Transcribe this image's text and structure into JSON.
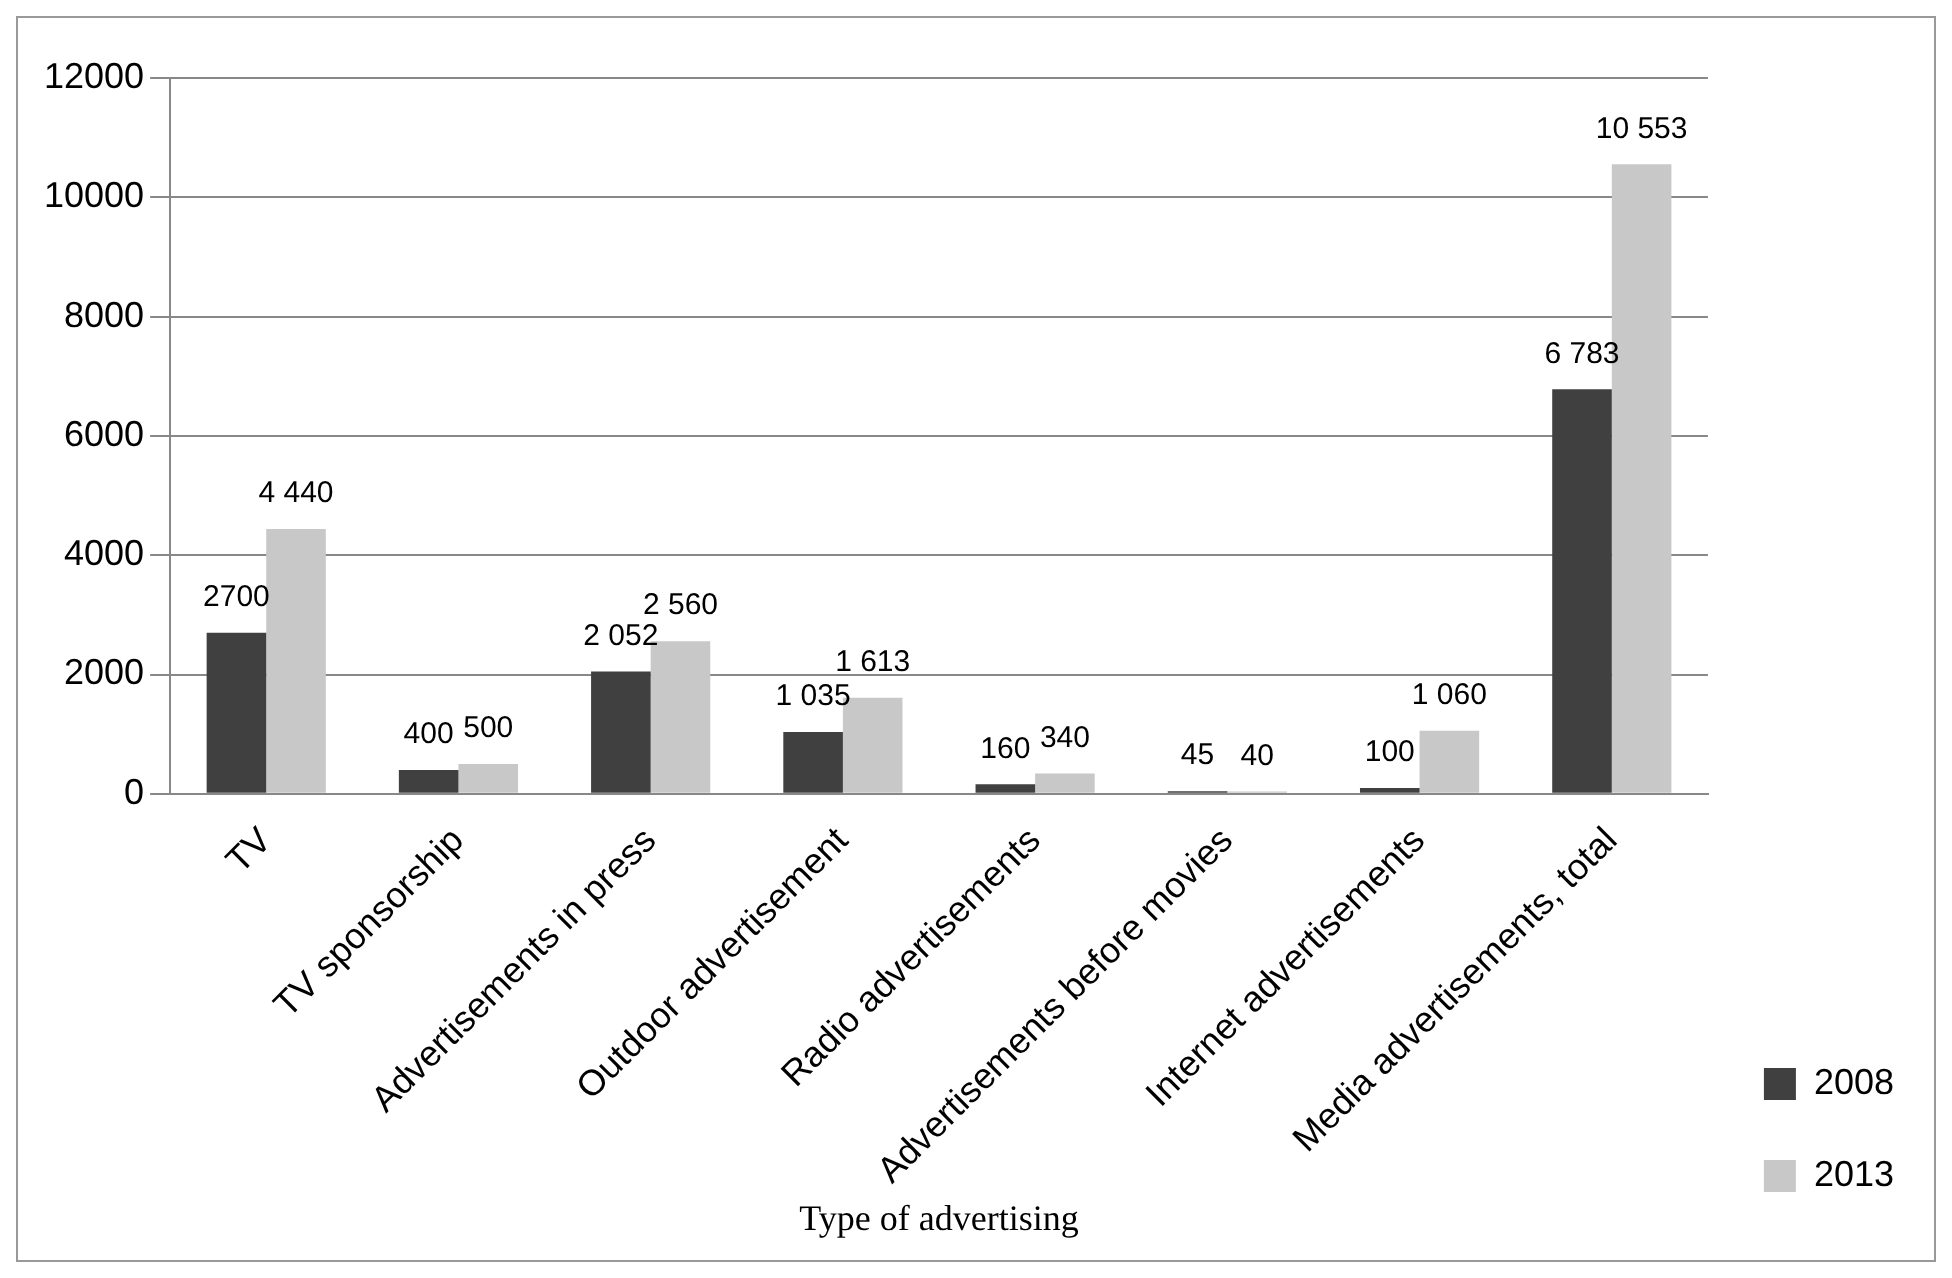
{
  "chart_data": {
    "type": "bar",
    "xlabel": "Type of advertising",
    "categories": [
      "TV",
      "TV sponsorship",
      "Advertisements in press",
      "Outdoor advertisement",
      "Radio advertisements",
      "Advertisements before movies",
      "Internet advertisements",
      "Media advertisements, total"
    ],
    "series": [
      {
        "name": "2008",
        "color": "#404040",
        "values": [
          2700,
          400,
          2052,
          1035,
          160,
          45,
          100,
          6783
        ],
        "value_labels": [
          "2700",
          "400",
          "2 052",
          "1 035",
          "160",
          "45",
          "100",
          "6 783"
        ]
      },
      {
        "name": "2013",
        "color": "#c8c8c8",
        "values": [
          4440,
          500,
          2560,
          1613,
          340,
          40,
          1060,
          10553
        ],
        "value_labels": [
          "4 440",
          "500",
          "2 560",
          "1 613",
          "340",
          "40",
          "1 060",
          "10 553"
        ]
      }
    ],
    "ylim": [
      0,
      12000
    ],
    "yticks": [
      0,
      2000,
      4000,
      6000,
      8000,
      10000,
      12000
    ],
    "grid": "y",
    "legend": "bottom right"
  }
}
